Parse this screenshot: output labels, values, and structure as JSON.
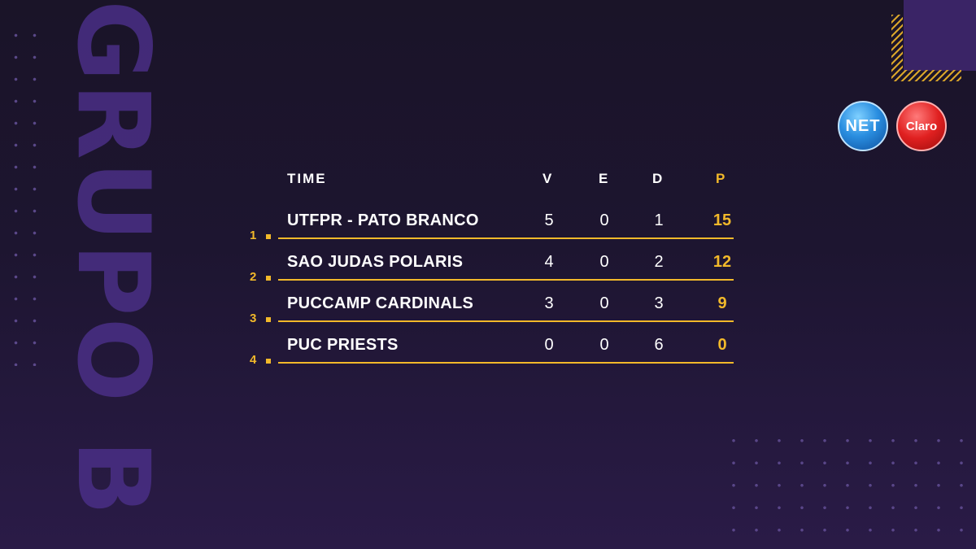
{
  "vertical_title": "GRUPO B",
  "logos": {
    "net": "NET",
    "claro": "Claro"
  },
  "table": {
    "headers": {
      "team": "TIME",
      "wins": "V",
      "draws": "E",
      "losses": "D",
      "points": "P"
    },
    "rows": [
      {
        "rank": "1",
        "team": "UTFPR - PATO BRANCO",
        "wins": "5",
        "draws": "0",
        "losses": "1",
        "points": "15"
      },
      {
        "rank": "2",
        "team": "SAO JUDAS POLARIS",
        "wins": "4",
        "draws": "0",
        "losses": "2",
        "points": "12"
      },
      {
        "rank": "3",
        "team": "PUCCAMP CARDINALS",
        "wins": "3",
        "draws": "0",
        "losses": "3",
        "points": "9"
      },
      {
        "rank": "4",
        "team": "PUC PRIESTS",
        "wins": "0",
        "draws": "0",
        "losses": "6",
        "points": "0"
      }
    ]
  },
  "colors": {
    "accent": "#f2b92a",
    "background": "#1d1530",
    "title": "#4a2f86"
  }
}
